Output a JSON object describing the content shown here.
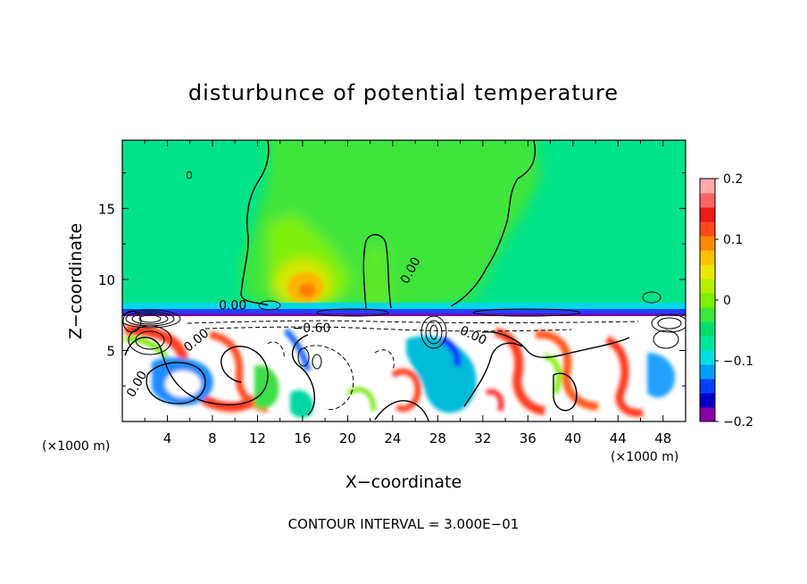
{
  "chart_data": {
    "type": "heatmap",
    "title": "disturbunce of potential temperature",
    "xlabel": "X−coordinate",
    "ylabel": "Z−coordinate",
    "x_unit_left": "(×1000 m)",
    "x_unit_right": "(×1000 m)",
    "footer": "CONTOUR INTERVAL = 3.000E−01",
    "xlim": [
      0,
      50
    ],
    "ylim": [
      0,
      19.8
    ],
    "x_ticks": [
      "4",
      "8",
      "12",
      "16",
      "20",
      "24",
      "28",
      "32",
      "36",
      "40",
      "44",
      "48"
    ],
    "y_ticks": [
      "5",
      "10",
      "15"
    ],
    "colorbar": {
      "range": [
        -0.2,
        0.2
      ],
      "tick_labels": [
        "0.2",
        "0.1",
        "0",
        "−0.1",
        "−0.2"
      ],
      "colors": [
        "#8a00a8",
        "#0000c8",
        "#0040ff",
        "#00a0ff",
        "#00e0e0",
        "#00e69a",
        "#00e06a",
        "#3ce83c",
        "#7ef000",
        "#b6ee00",
        "#eaea00",
        "#ffc000",
        "#ff8a00",
        "#ff4a1a",
        "#ee1818",
        "#ff6464",
        "#ffaaaa"
      ]
    },
    "contour_labels": [
      {
        "text": "0.00",
        "x": 9.8,
        "y": 7.9,
        "angle": 0
      },
      {
        "text": "0.00",
        "x": 25.9,
        "y": 10.5,
        "angle": -62
      },
      {
        "text": "−0.60",
        "x": 16.8,
        "y": 6.3,
        "angle": 0
      },
      {
        "text": "0.00",
        "x": 31.0,
        "y": 5.8,
        "angle": 25
      },
      {
        "text": "0.00",
        "x": 6.8,
        "y": 5.5,
        "angle": -40
      },
      {
        "text": "0.00",
        "x": 1.6,
        "y": 2.5,
        "angle": -60
      }
    ],
    "legend": "none",
    "grid": false
  }
}
